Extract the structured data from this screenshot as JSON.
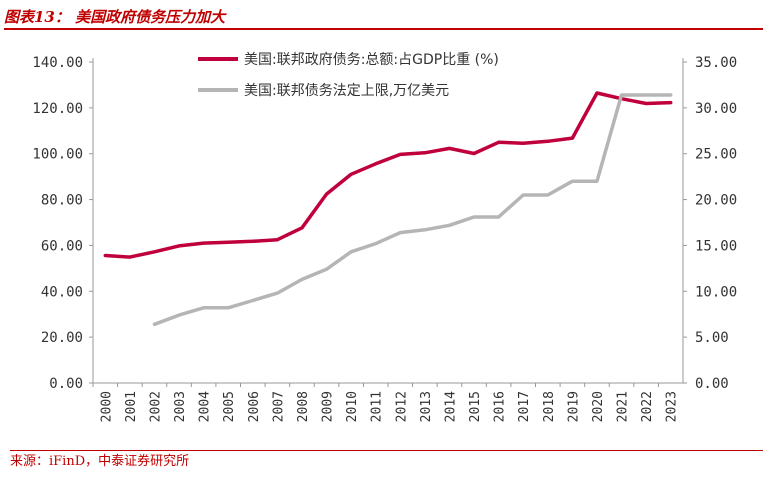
{
  "header": {
    "title": "图表13：  美国政府债务压力加大"
  },
  "footer": {
    "source": "来源：iFinD，中泰证券研究所"
  },
  "chart_data": {
    "type": "line",
    "categories": [
      "2000",
      "2001",
      "2002",
      "2003",
      "2004",
      "2005",
      "2006",
      "2007",
      "2008",
      "2009",
      "2010",
      "2011",
      "2012",
      "2013",
      "2014",
      "2015",
      "2016",
      "2017",
      "2018",
      "2019",
      "2020",
      "2021",
      "2022",
      "2023"
    ],
    "series": [
      {
        "name": "美国:联邦政府债务:总额:占GDP比重 (%)",
        "axis": "left",
        "color": "#c0003c",
        "values": [
          55.6,
          54.9,
          57.2,
          59.8,
          61.0,
          61.4,
          61.8,
          62.5,
          67.7,
          82.4,
          91.0,
          95.6,
          99.7,
          100.4,
          102.3,
          100.1,
          105.0,
          104.6,
          105.4,
          106.8,
          126.5,
          124.0,
          121.9,
          122.3
        ]
      },
      {
        "name": "美国:联邦债务法定上限,万亿美元",
        "axis": "right",
        "color": "#b5b5b5",
        "values": [
          null,
          null,
          6.4,
          7.4,
          8.2,
          8.2,
          9.0,
          9.8,
          11.3,
          12.4,
          14.3,
          15.2,
          16.4,
          16.7,
          17.2,
          18.1,
          18.1,
          20.5,
          20.5,
          22.0,
          22.0,
          31.4,
          31.4,
          31.4
        ]
      }
    ],
    "left_axis": {
      "ylim": [
        0,
        140
      ],
      "ticks": [
        "0.00",
        "20.00",
        "40.00",
        "60.00",
        "80.00",
        "100.00",
        "120.00",
        "140.00"
      ]
    },
    "right_axis": {
      "ylim": [
        0,
        35
      ],
      "ticks": [
        "0.00",
        "5.00",
        "10.00",
        "15.00",
        "20.00",
        "25.00",
        "30.00",
        "35.00"
      ]
    },
    "grid": false,
    "legend_position": "top"
  }
}
